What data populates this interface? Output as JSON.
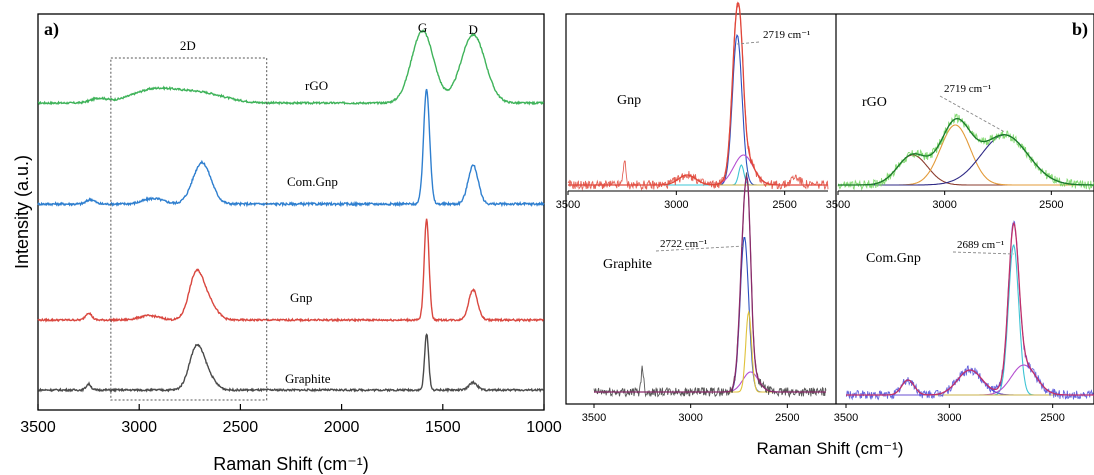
{
  "figure": {
    "panel_a_tag": "a)",
    "panel_b_tag": "b)",
    "bottom_xlabel_b": "Raman Shift (cm⁻¹)"
  },
  "chart_data": [
    {
      "panel": "a",
      "type": "line",
      "xlabel": "Raman Shift (cm⁻¹)",
      "ylabel": "Intensity (a.u.)",
      "xlim": [
        3500,
        1000
      ],
      "xticks": [
        3500,
        3000,
        2500,
        2000,
        1500,
        1000
      ],
      "x_reversed": true,
      "y_units": "arbitrary (stacked offsets)",
      "annotations": [
        {
          "text": "2D",
          "x": 2760
        },
        {
          "text": "G",
          "x": 1600
        },
        {
          "text": "D",
          "x": 1350
        }
      ],
      "highlight_region_x": [
        3140,
        2370
      ],
      "series": [
        {
          "name": "rGO",
          "color": "#3fb35a",
          "offset": 3.0,
          "peaks": [
            [
              3200,
              0.06,
              40
            ],
            [
              2930,
              0.18,
              110
            ],
            [
              2700,
              0.14,
              120
            ],
            [
              1600,
              1.0,
              55
            ],
            [
              1350,
              0.95,
              60
            ]
          ]
        },
        {
          "name": "Com.Gnp",
          "color": "#2f7fcf",
          "offset": 2.0,
          "peaks": [
            [
              3240,
              0.05,
              20
            ],
            [
              2930,
              0.06,
              50
            ],
            [
              2690,
              0.45,
              45
            ],
            [
              1580,
              1.25,
              15
            ],
            [
              1350,
              0.42,
              25
            ]
          ]
        },
        {
          "name": "Gnp",
          "color": "#d9473f",
          "offset": 1.0,
          "peaks": [
            [
              3250,
              0.1,
              15
            ],
            [
              2950,
              0.06,
              50
            ],
            [
              2720,
              0.6,
              35
            ],
            [
              2660,
              0.25,
              40
            ],
            [
              1580,
              1.4,
              12
            ],
            [
              1350,
              0.42,
              22
            ]
          ]
        },
        {
          "name": "Graphite",
          "color": "#4a4a4a",
          "offset": 0.0,
          "peaks": [
            [
              3250,
              0.08,
              12
            ],
            [
              2720,
              0.5,
              35
            ],
            [
              2670,
              0.2,
              40
            ],
            [
              1580,
              0.75,
              10
            ],
            [
              1350,
              0.1,
              20
            ]
          ]
        }
      ]
    },
    {
      "panel": "b",
      "type": "line",
      "title": "",
      "xlim": [
        3500,
        2300
      ],
      "xticks": [
        3500,
        3000,
        2500
      ],
      "x_reversed": true,
      "subplots": [
        {
          "label": "Gnp",
          "annotation": "2719 cm⁻¹",
          "peak_x": 2719
        },
        {
          "label": "rGO",
          "annotation": "2719 cm⁻¹",
          "peak_x": 2719
        },
        {
          "label": "Graphite",
          "annotation": "2722 cm⁻¹",
          "peak_x": 2722
        },
        {
          "label": "Com.Gnp",
          "annotation": "2689 cm⁻¹",
          "peak_x": 2689
        }
      ]
    }
  ]
}
